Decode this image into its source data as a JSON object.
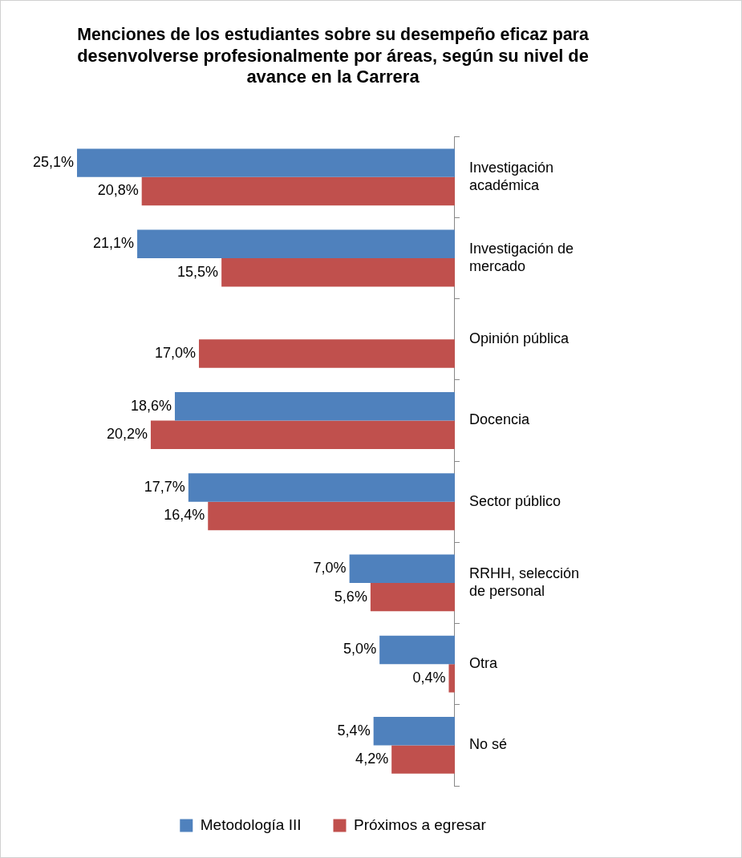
{
  "chart_data": {
    "type": "bar",
    "orientation": "horizontal",
    "title": "Menciones de los estudiantes sobre su desempeño eficaz para desenvolverse profesionalmente por áreas, según su nivel de avance en la Carrera",
    "categories": [
      "Investigación académica",
      "Investigación de mercado",
      "Opinión pública",
      "Docencia",
      "Sector público",
      "RRHH, selección de personal",
      "Otra",
      "No sé"
    ],
    "series": [
      {
        "name": "Metodología III",
        "color": "#4f81bd",
        "values": [
          25.1,
          21.1,
          null,
          18.6,
          17.7,
          7.0,
          5.0,
          5.4
        ],
        "value_labels": [
          "25,1%",
          "21,1%",
          null,
          "18,6%",
          "17,7%",
          "7,0%",
          "5,0%",
          "5,4%"
        ]
      },
      {
        "name": "Próximos a egresar",
        "color": "#c0504d",
        "values": [
          20.8,
          15.5,
          17.0,
          20.2,
          16.4,
          5.6,
          0.4,
          4.2
        ],
        "value_labels": [
          "20,8%",
          "15,5%",
          "17,0%",
          "20,2%",
          "16,4%",
          "5,6%",
          "0,4%",
          "4,2%"
        ]
      }
    ],
    "tick_labels": "y",
    "legend": "bottom"
  }
}
